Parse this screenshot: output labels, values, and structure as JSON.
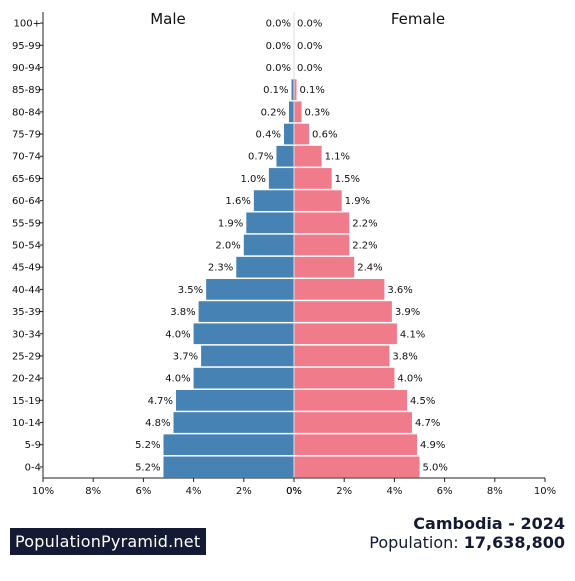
{
  "chart_data": {
    "type": "bar",
    "orientation": "horizontal-population-pyramid",
    "left_label": "Male",
    "right_label": "Female",
    "xlim": [
      0,
      10
    ],
    "x_ticks": [
      "10%",
      "8%",
      "6%",
      "4%",
      "2%",
      "0%",
      "0%",
      "2%",
      "4%",
      "6%",
      "8%",
      "10%"
    ],
    "categories": [
      "100+",
      "95-99",
      "90-94",
      "85-89",
      "80-84",
      "75-79",
      "70-74",
      "65-69",
      "60-64",
      "55-59",
      "50-54",
      "45-49",
      "40-44",
      "35-39",
      "30-34",
      "25-29",
      "20-24",
      "15-19",
      "10-14",
      "5-9",
      "0-4"
    ],
    "series": [
      {
        "name": "Male",
        "values": [
          0.0,
          0.0,
          0.0,
          0.1,
          0.2,
          0.4,
          0.7,
          1.0,
          1.6,
          1.9,
          2.0,
          2.3,
          3.5,
          3.8,
          4.0,
          3.7,
          4.0,
          4.7,
          4.8,
          5.2,
          5.2
        ],
        "labels": [
          "0.0%",
          "0.0%",
          "0.0%",
          "0.1%",
          "0.2%",
          "0.4%",
          "0.7%",
          "1.0%",
          "1.6%",
          "1.9%",
          "2.0%",
          "2.3%",
          "3.5%",
          "3.8%",
          "4.0%",
          "3.7%",
          "4.0%",
          "4.7%",
          "4.8%",
          "5.2%",
          "5.2%"
        ],
        "color": "#4682b4"
      },
      {
        "name": "Female",
        "values": [
          0.0,
          0.0,
          0.0,
          0.1,
          0.3,
          0.6,
          1.1,
          1.5,
          1.9,
          2.2,
          2.2,
          2.4,
          3.6,
          3.9,
          4.1,
          3.8,
          4.0,
          4.5,
          4.7,
          4.9,
          5.0
        ],
        "labels": [
          "0.0%",
          "0.0%",
          "0.0%",
          "0.1%",
          "0.3%",
          "0.6%",
          "1.1%",
          "1.5%",
          "1.9%",
          "2.2%",
          "2.2%",
          "2.4%",
          "3.6%",
          "3.9%",
          "4.1%",
          "3.8%",
          "4.0%",
          "4.5%",
          "4.7%",
          "4.9%",
          "5.0%"
        ],
        "color": "#f07b8a"
      }
    ]
  },
  "brand": "PopulationPyramid.net",
  "country_year": "Cambodia - 2024",
  "population_label": "Population: ",
  "population_value": "17,638,800"
}
